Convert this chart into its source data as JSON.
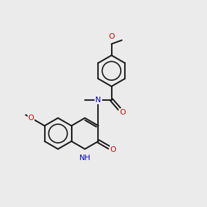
{
  "bg": "#ebebeb",
  "bc": "#1a1a1a",
  "oc": "#cc0000",
  "nc": "#0000cc",
  "bw": 1.5,
  "fs": 8.0,
  "bl": 0.75,
  "xlim": [
    0,
    10
  ],
  "ylim": [
    0,
    10
  ]
}
